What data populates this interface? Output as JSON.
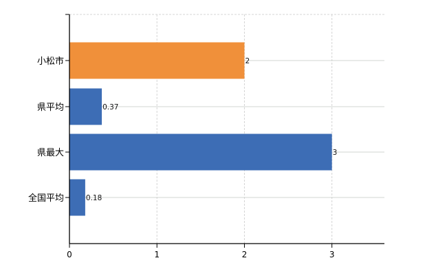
{
  "chart_data": {
    "type": "bar",
    "orientation": "horizontal",
    "categories": [
      "小松市",
      "県平均",
      "県最大",
      "全国平均"
    ],
    "values": [
      2,
      0.37,
      3,
      0.18
    ],
    "value_labels": [
      "2",
      "0.37",
      "3",
      "0.18"
    ],
    "colors": [
      "#F0903A",
      "#3D6DB5",
      "#3D6DB5",
      "#3D6DB5"
    ],
    "xlim": [
      0,
      3.6
    ],
    "xticks": [
      0,
      1,
      2,
      3
    ],
    "xtick_labels": [
      "0",
      "1",
      "2",
      "3"
    ],
    "grid": true,
    "title": "",
    "xlabel": "",
    "ylabel": ""
  }
}
